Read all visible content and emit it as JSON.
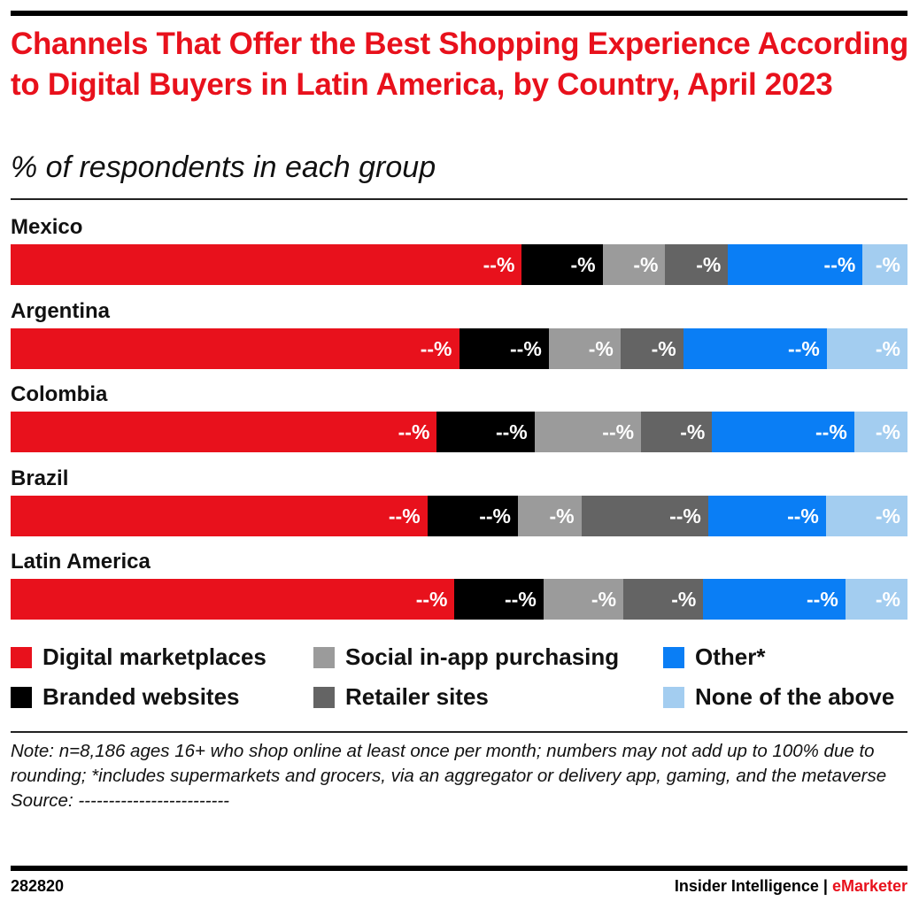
{
  "title": "Channels That Offer the Best Shopping Experience According to Digital Buyers in Latin America, by Country, April 2023",
  "subtitle": "% of respondents in each group",
  "note": "Note: n=8,186 ages 16+ who shop online at least once per month; numbers may not add up to 100% due to rounding; *includes supermarkets and grocers, via an aggregator or delivery app, gaming, and the metaverse",
  "source": "Source: -------------------------",
  "footer": {
    "id": "282820",
    "brand_left": "Insider Intelligence",
    "separator": " | ",
    "brand_right": "eMarketer"
  },
  "colors": [
    "#e8111c",
    "#000000",
    "#9b9b9b",
    "#646464",
    "#0a7ef5",
    "#a3cdf0"
  ],
  "chart_data": {
    "type": "bar",
    "orientation": "horizontal",
    "stacked": true,
    "title": "Channels That Offer the Best Shopping Experience According to Digital Buyers in Latin America, by Country, April 2023",
    "subtitle": "% of respondents in each group",
    "categories": [
      "Mexico",
      "Argentina",
      "Colombia",
      "Brazil",
      "Latin America"
    ],
    "legend_position": "bottom",
    "grid": false,
    "series": [
      {
        "name": "Digital marketplaces",
        "values": [
          57,
          50,
          48,
          46,
          50
        ],
        "labels": [
          "--%",
          "--%",
          "--%",
          "--%",
          "--%"
        ]
      },
      {
        "name": "Branded websites",
        "values": [
          9,
          10,
          11,
          10,
          10
        ],
        "labels": [
          "-%",
          "--%",
          "--%",
          "--%",
          "--%"
        ]
      },
      {
        "name": "Social in-app purchasing",
        "values": [
          7,
          8,
          12,
          7,
          9
        ],
        "labels": [
          "-%",
          "-%",
          "--%",
          "-%",
          "-%"
        ]
      },
      {
        "name": "Retailer sites",
        "values": [
          7,
          7,
          8,
          14,
          9
        ],
        "labels": [
          "-%",
          "-%",
          "-%",
          "--%",
          "-%"
        ]
      },
      {
        "name": "Other*",
        "values": [
          15,
          16,
          16,
          13,
          16
        ],
        "labels": [
          "--%",
          "--%",
          "--%",
          "--%",
          "--%"
        ]
      },
      {
        "name": "None of the above",
        "values": [
          5,
          9,
          6,
          9,
          7
        ],
        "labels": [
          "-%",
          "-%",
          "-%",
          "-%",
          "-%"
        ]
      }
    ]
  }
}
